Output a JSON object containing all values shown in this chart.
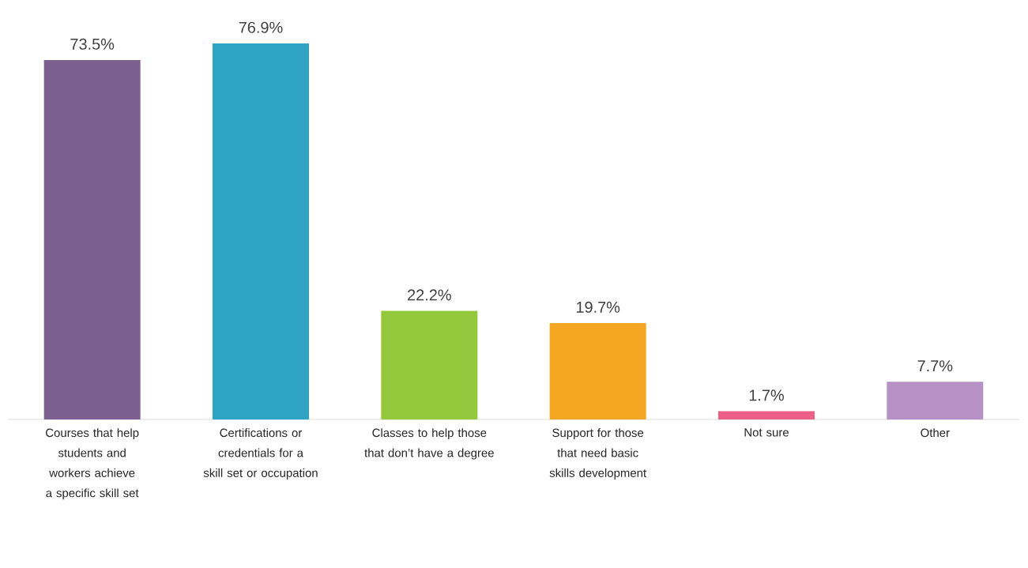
{
  "chart_data": {
    "type": "bar",
    "categories": [
      "Courses that help students and workers achieve a specific skill set",
      "Certifications or credentials for a skill set or occupation",
      "Classes to help those that don’t have a degree",
      "Support for those that need basic skills development",
      "Not sure",
      "Other"
    ],
    "values": [
      73.5,
      76.9,
      22.2,
      19.7,
      1.7,
      7.7
    ],
    "value_labels": [
      "73.5%",
      "76.9%",
      "22.2%",
      "19.7%",
      "1.7%",
      "7.7%"
    ],
    "colors": [
      "#7b5f8e",
      "#2ea3c3",
      "#95c93d",
      "#f4a521",
      "#ec5f86",
      "#b691c4"
    ]
  }
}
